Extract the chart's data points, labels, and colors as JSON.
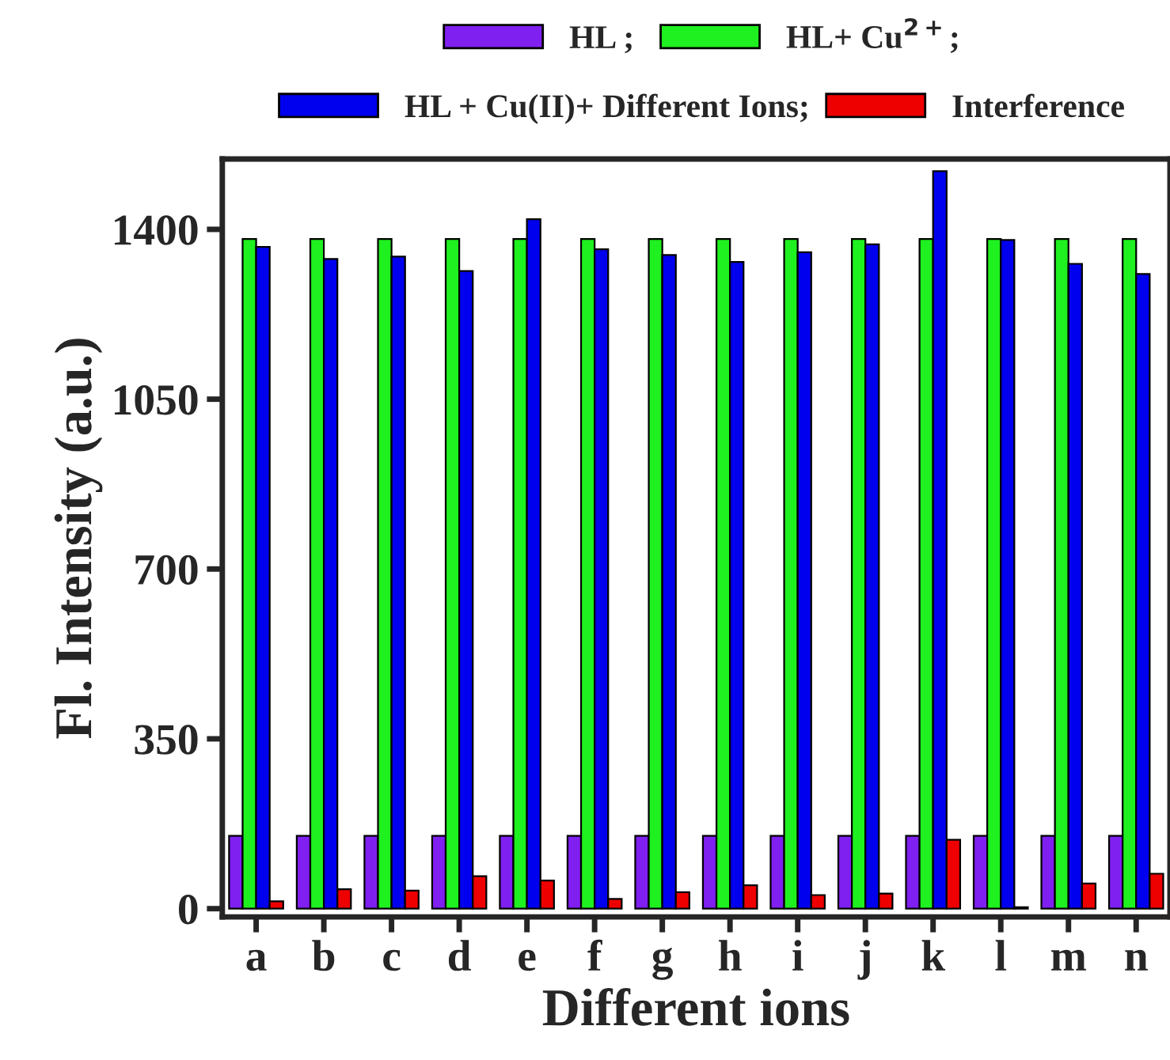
{
  "chart_data": {
    "type": "bar",
    "xlabel": "Different ions",
    "ylabel": "Fl. Intensity (a.u.)",
    "categories": [
      "a",
      "b",
      "c",
      "d",
      "e",
      "f",
      "g",
      "h",
      "i",
      "j",
      "k",
      "l",
      "m",
      "n"
    ],
    "series": [
      {
        "name": "HL ;",
        "color": "#7f1ff0",
        "values": [
          150,
          150,
          150,
          150,
          150,
          150,
          150,
          150,
          150,
          150,
          150,
          150,
          150,
          150
        ]
      },
      {
        "name": "HL+ Cu$^{2+}$;",
        "color": "#1ff01f",
        "values": [
          1380,
          1380,
          1380,
          1380,
          1380,
          1380,
          1380,
          1380,
          1380,
          1380,
          1380,
          1380,
          1380,
          1380
        ]
      },
      {
        "name": "HL + Cu(II)+ Different Ions;",
        "color": "#0000ee",
        "values": [
          1364,
          1339,
          1344,
          1314,
          1421,
          1359,
          1347,
          1333,
          1353,
          1369,
          1520,
          1378,
          1329,
          1308
        ]
      },
      {
        "name": "Interference",
        "color": "#ee0000",
        "values": [
          15,
          40,
          37,
          67,
          58,
          20,
          34,
          48,
          28,
          31,
          142,
          3,
          52,
          72
        ]
      }
    ],
    "ylim": [
      -17,
      1545
    ],
    "yticks": [
      0,
      350,
      700,
      1050,
      1400
    ],
    "grid": false,
    "legend": "top"
  }
}
